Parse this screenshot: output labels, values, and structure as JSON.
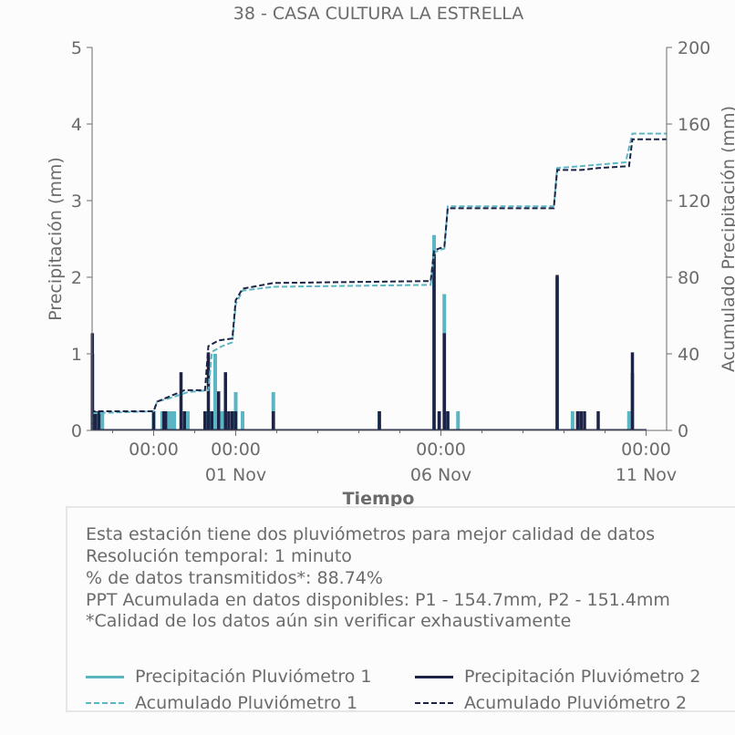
{
  "chart_data": {
    "type": "line",
    "title": "38 - CASA CULTURA LA ESTRELLA",
    "xlabel": "Tiempo",
    "ylabel_left": "Precipitación (mm)",
    "ylabel_right": "Acumulado Precipitación (mm)",
    "ylim_left": [
      0,
      5
    ],
    "ylim_right": [
      0,
      200
    ],
    "yticks_left": [
      "0",
      "1",
      "2",
      "3",
      "4",
      "5"
    ],
    "yticks_right": [
      "0",
      "40",
      "80",
      "120",
      "160",
      "200"
    ],
    "xlim_days": [
      "2023-10-28T12:00",
      "2023-11-11T12:00"
    ],
    "x_tick_labels": [
      {
        "x": "2023-10-30T00:00",
        "label": "00:00"
      },
      {
        "x": "2023-11-01T00:00",
        "label": "00:00\n01 Nov"
      },
      {
        "x": "2023-11-06T00:00",
        "label": "00:00\n06 Nov"
      },
      {
        "x": "2023-11-11T00:00",
        "label": "00:00\n11 Nov"
      }
    ],
    "grid": false,
    "series": [
      {
        "name": "Precipitación Pluviómetro 1",
        "axis": "left",
        "color": "#5bb6c4",
        "style": "solid",
        "spikes": [
          {
            "x": "2023-10-28T12:15",
            "y": 1.0
          },
          {
            "x": "2023-10-28T14:00",
            "y": 0.25
          },
          {
            "x": "2023-10-28T18:00",
            "y": 0.25
          },
          {
            "x": "2023-10-30T00:00",
            "y": 0.25
          },
          {
            "x": "2023-10-30T05:00",
            "y": 0.25
          },
          {
            "x": "2023-10-30T08:00",
            "y": 0.25
          },
          {
            "x": "2023-10-30T10:00",
            "y": 0.25
          },
          {
            "x": "2023-10-30T12:00",
            "y": 0.25
          },
          {
            "x": "2023-10-30T20:00",
            "y": 0.25
          },
          {
            "x": "2023-10-31T08:00",
            "y": 0.25
          },
          {
            "x": "2023-10-31T12:00",
            "y": 1.0
          },
          {
            "x": "2023-10-31T16:00",
            "y": 0.25
          },
          {
            "x": "2023-10-31T19:00",
            "y": 0.25
          },
          {
            "x": "2023-11-01T00:00",
            "y": 0.5
          },
          {
            "x": "2023-11-01T04:00",
            "y": 0.25
          },
          {
            "x": "2023-11-01T22:00",
            "y": 0.5
          },
          {
            "x": "2023-11-04T12:00",
            "y": 0.25
          },
          {
            "x": "2023-11-05T20:00",
            "y": 2.55
          },
          {
            "x": "2023-11-05T23:00",
            "y": 0.25
          },
          {
            "x": "2023-11-06T02:00",
            "y": 1.78
          },
          {
            "x": "2023-11-06T04:00",
            "y": 0.25
          },
          {
            "x": "2023-11-06T10:00",
            "y": 0.25
          },
          {
            "x": "2023-11-08T20:00",
            "y": 2.0
          },
          {
            "x": "2023-11-09T05:00",
            "y": 0.25
          },
          {
            "x": "2023-11-09T08:00",
            "y": 0.25
          },
          {
            "x": "2023-11-10T14:00",
            "y": 0.25
          },
          {
            "x": "2023-11-10T16:00",
            "y": 0.75
          }
        ]
      },
      {
        "name": "Precipitación Pluviómetro 2",
        "axis": "left",
        "color": "#1c2346",
        "style": "solid",
        "spikes": [
          {
            "x": "2023-10-28T12:10",
            "y": 1.27
          },
          {
            "x": "2023-10-28T14:00",
            "y": 0.25
          },
          {
            "x": "2023-10-28T16:00",
            "y": 0.25
          },
          {
            "x": "2023-10-30T00:00",
            "y": 0.25
          },
          {
            "x": "2023-10-30T06:00",
            "y": 0.25
          },
          {
            "x": "2023-10-30T07:00",
            "y": 0.25
          },
          {
            "x": "2023-10-30T16:00",
            "y": 0.76
          },
          {
            "x": "2023-10-30T18:00",
            "y": 0.25
          },
          {
            "x": "2023-10-31T06:00",
            "y": 0.25
          },
          {
            "x": "2023-10-31T08:00",
            "y": 1.02
          },
          {
            "x": "2023-10-31T10:00",
            "y": 0.25
          },
          {
            "x": "2023-10-31T14:00",
            "y": 0.51
          },
          {
            "x": "2023-10-31T18:00",
            "y": 0.76
          },
          {
            "x": "2023-10-31T20:00",
            "y": 0.25
          },
          {
            "x": "2023-10-31T22:00",
            "y": 0.25
          },
          {
            "x": "2023-11-01T00:00",
            "y": 0.25
          },
          {
            "x": "2023-11-01T22:00",
            "y": 0.25
          },
          {
            "x": "2023-11-04T12:00",
            "y": 0.25
          },
          {
            "x": "2023-11-05T20:00",
            "y": 2.3
          },
          {
            "x": "2023-11-05T23:00",
            "y": 0.25
          },
          {
            "x": "2023-11-06T02:00",
            "y": 1.27
          },
          {
            "x": "2023-11-06T04:00",
            "y": 0.25
          },
          {
            "x": "2023-11-08T20:00",
            "y": 2.03
          },
          {
            "x": "2023-11-09T08:00",
            "y": 0.25
          },
          {
            "x": "2023-11-09T10:00",
            "y": 0.25
          },
          {
            "x": "2023-11-09T12:00",
            "y": 0.25
          },
          {
            "x": "2023-11-09T20:00",
            "y": 0.25
          },
          {
            "x": "2023-11-10T16:00",
            "y": 1.02
          }
        ]
      },
      {
        "name": "Acumulado Pluviómetro 1",
        "axis": "right",
        "color": "#5bb6c4",
        "style": "dashed",
        "points": [
          {
            "x": "2023-10-28T12:00",
            "y": 0
          },
          {
            "x": "2023-10-28T12:20",
            "y": 9
          },
          {
            "x": "2023-10-30T00:00",
            "y": 10
          },
          {
            "x": "2023-10-30T02:00",
            "y": 15
          },
          {
            "x": "2023-10-30T10:00",
            "y": 17
          },
          {
            "x": "2023-10-30T20:00",
            "y": 20
          },
          {
            "x": "2023-10-31T08:00",
            "y": 21
          },
          {
            "x": "2023-10-31T10:00",
            "y": 41
          },
          {
            "x": "2023-10-31T16:00",
            "y": 44
          },
          {
            "x": "2023-10-31T22:00",
            "y": 46
          },
          {
            "x": "2023-11-01T00:00",
            "y": 66
          },
          {
            "x": "2023-11-01T04:00",
            "y": 73
          },
          {
            "x": "2023-11-01T22:00",
            "y": 75
          },
          {
            "x": "2023-11-05T18:00",
            "y": 76
          },
          {
            "x": "2023-11-05T20:00",
            "y": 93
          },
          {
            "x": "2023-11-06T02:00",
            "y": 95
          },
          {
            "x": "2023-11-06T04:00",
            "y": 117
          },
          {
            "x": "2023-11-08T18:00",
            "y": 117
          },
          {
            "x": "2023-11-08T20:00",
            "y": 137
          },
          {
            "x": "2023-11-09T10:00",
            "y": 138
          },
          {
            "x": "2023-11-10T12:00",
            "y": 140
          },
          {
            "x": "2023-11-10T16:00",
            "y": 155
          },
          {
            "x": "2023-11-11T12:00",
            "y": 155
          }
        ]
      },
      {
        "name": "Acumulado Pluviómetro 2",
        "axis": "right",
        "color": "#1c2346",
        "style": "dashed",
        "points": [
          {
            "x": "2023-10-28T12:00",
            "y": 0
          },
          {
            "x": "2023-10-28T12:20",
            "y": 10
          },
          {
            "x": "2023-10-30T00:00",
            "y": 10
          },
          {
            "x": "2023-10-30T02:00",
            "y": 15
          },
          {
            "x": "2023-10-30T10:00",
            "y": 18
          },
          {
            "x": "2023-10-30T18:00",
            "y": 21
          },
          {
            "x": "2023-10-31T06:00",
            "y": 21
          },
          {
            "x": "2023-10-31T08:00",
            "y": 44
          },
          {
            "x": "2023-10-31T14:00",
            "y": 47
          },
          {
            "x": "2023-10-31T22:00",
            "y": 48
          },
          {
            "x": "2023-11-01T00:00",
            "y": 68
          },
          {
            "x": "2023-11-01T04:00",
            "y": 74
          },
          {
            "x": "2023-11-01T22:00",
            "y": 77
          },
          {
            "x": "2023-11-05T18:00",
            "y": 78
          },
          {
            "x": "2023-11-05T20:00",
            "y": 94
          },
          {
            "x": "2023-11-06T02:00",
            "y": 96
          },
          {
            "x": "2023-11-06T04:00",
            "y": 116
          },
          {
            "x": "2023-11-08T18:00",
            "y": 116
          },
          {
            "x": "2023-11-08T20:00",
            "y": 136
          },
          {
            "x": "2023-11-09T10:00",
            "y": 136
          },
          {
            "x": "2023-11-09T20:00",
            "y": 137
          },
          {
            "x": "2023-11-10T14:00",
            "y": 138
          },
          {
            "x": "2023-11-10T16:00",
            "y": 152
          },
          {
            "x": "2023-11-11T12:00",
            "y": 152
          }
        ]
      }
    ]
  },
  "info": {
    "line1": "Esta estación tiene dos pluviómetros para mejor calidad de datos",
    "line2": "Resolución temporal: 1 minuto",
    "line3": "% de datos transmitidos*: 88.74%",
    "line4": "PPT Acumulada en datos disponibles: P1 - 154.7mm, P2 - 151.4mm",
    "line5": "*Calidad de los datos aún sin verificar exhaustivamente"
  },
  "legend": {
    "p1": "Precipitación Pluviómetro 1",
    "p2": "Precipitación Pluviómetro 2",
    "a1": "Acumulado Pluviómetro 1",
    "a2": "Acumulado Pluviómetro 2",
    "color_p1": "#5bb6c4",
    "color_p2": "#1c2346"
  }
}
